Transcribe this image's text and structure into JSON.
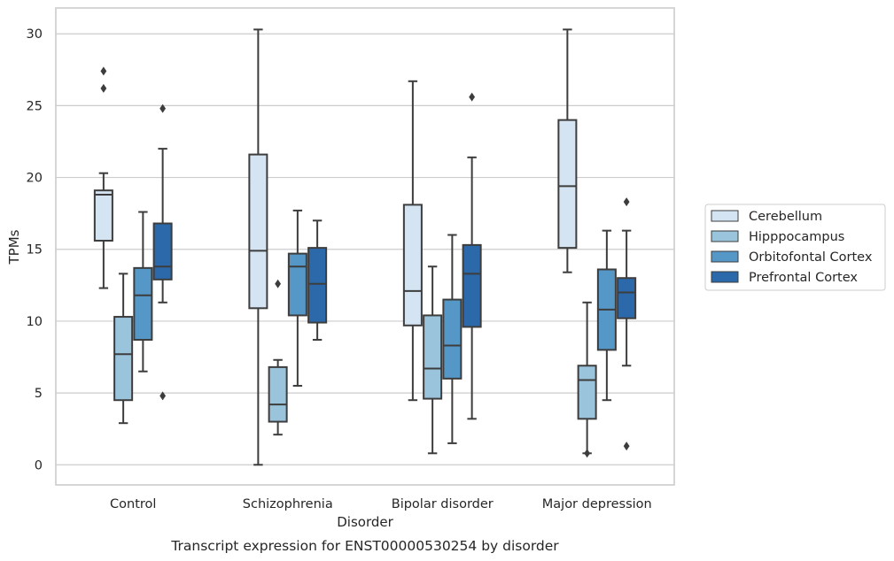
{
  "chart_data": {
    "type": "box",
    "xlabel": "Disorder",
    "ylabel": "TPMs",
    "caption": "Transcript expression for ENST00000530254 by disorder",
    "ylim": [
      -1.4,
      31.8
    ],
    "yticks": [
      0,
      5,
      10,
      15,
      20,
      25,
      30
    ],
    "grid": "horizontal",
    "legend_position": "right",
    "categories": [
      "Control",
      "Schizophrenia",
      "Bipolar disorder",
      "Major depression"
    ],
    "series": [
      {
        "name": "Cerebellum",
        "color": "#d4e4f2",
        "boxes": [
          {
            "whislo": 12.3,
            "q1": 15.6,
            "med": 18.8,
            "q3": 19.1,
            "whishi": 20.3,
            "fliers": [
              26.2,
              27.4
            ]
          },
          {
            "whislo": 0.0,
            "q1": 10.9,
            "med": 14.9,
            "q3": 21.6,
            "whishi": 30.3,
            "fliers": []
          },
          {
            "whislo": 4.5,
            "q1": 9.7,
            "med": 12.1,
            "q3": 18.1,
            "whishi": 26.7,
            "fliers": []
          },
          {
            "whislo": 13.4,
            "q1": 15.1,
            "med": 19.4,
            "q3": 24.0,
            "whishi": 30.3,
            "fliers": []
          }
        ]
      },
      {
        "name": "Hipppocampus",
        "color": "#9ac3dc",
        "boxes": [
          {
            "whislo": 2.9,
            "q1": 4.5,
            "med": 7.7,
            "q3": 10.3,
            "whishi": 13.3,
            "fliers": []
          },
          {
            "whislo": 2.1,
            "q1": 3.0,
            "med": 4.2,
            "q3": 6.8,
            "whishi": 7.3,
            "fliers": [
              12.6
            ]
          },
          {
            "whislo": 0.8,
            "q1": 4.6,
            "med": 6.7,
            "q3": 10.4,
            "whishi": 13.8,
            "fliers": []
          },
          {
            "whislo": 0.8,
            "q1": 3.2,
            "med": 5.9,
            "q3": 6.9,
            "whishi": 11.3,
            "fliers": [
              0.8
            ]
          }
        ]
      },
      {
        "name": "Orbitofontal Cortex",
        "color": "#5597c6",
        "boxes": [
          {
            "whislo": 6.5,
            "q1": 8.7,
            "med": 11.8,
            "q3": 13.7,
            "whishi": 17.6,
            "fliers": []
          },
          {
            "whislo": 5.5,
            "q1": 10.4,
            "med": 13.8,
            "q3": 14.7,
            "whishi": 17.7,
            "fliers": []
          },
          {
            "whislo": 1.5,
            "q1": 6.0,
            "med": 8.3,
            "q3": 11.5,
            "whishi": 16.0,
            "fliers": []
          },
          {
            "whislo": 4.5,
            "q1": 8.0,
            "med": 10.8,
            "q3": 13.6,
            "whishi": 16.3,
            "fliers": []
          }
        ]
      },
      {
        "name": "Prefrontal Cortex",
        "color": "#2c69ab",
        "boxes": [
          {
            "whislo": 11.3,
            "q1": 12.9,
            "med": 13.8,
            "q3": 16.8,
            "whishi": 22.0,
            "fliers": [
              4.8,
              24.8
            ]
          },
          {
            "whislo": 8.7,
            "q1": 9.9,
            "med": 12.6,
            "q3": 15.1,
            "whishi": 17.0,
            "fliers": []
          },
          {
            "whislo": 3.2,
            "q1": 9.6,
            "med": 13.3,
            "q3": 15.3,
            "whishi": 21.4,
            "fliers": [
              25.6
            ]
          },
          {
            "whislo": 6.9,
            "q1": 10.2,
            "med": 12.0,
            "q3": 13.0,
            "whishi": 16.3,
            "fliers": [
              1.3,
              18.3
            ]
          }
        ]
      }
    ]
  }
}
